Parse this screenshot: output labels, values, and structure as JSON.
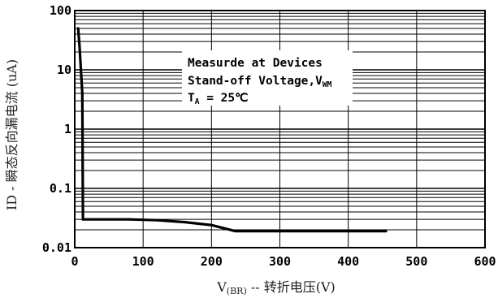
{
  "chart_data": {
    "type": "line",
    "scale": {
      "x": "linear",
      "y": "log"
    },
    "xlim": [
      0,
      600
    ],
    "ylim": [
      0.01,
      100
    ],
    "xticks": [
      0,
      100,
      200,
      300,
      400,
      500,
      600
    ],
    "xtick_labels": [
      "0",
      "100",
      "200",
      "300",
      "400",
      "500",
      "600"
    ],
    "yticks": [
      0.01,
      0.1,
      1,
      10,
      100
    ],
    "ytick_labels": [
      "0.01",
      "0.1",
      "1",
      "10",
      "100"
    ],
    "grid": true,
    "ylabel": "ID - 瞬态反向漏电流 (uA)",
    "xlabel": {
      "prefix": "V",
      "subscript": "(BR)",
      "suffix": " -- 转折电压(V)"
    },
    "annotation": {
      "line1": "Measurde at Devices",
      "line2_text": "Stand-off Voltage,V",
      "line2_sub": "WM",
      "line3_prefix": "T",
      "line3_sub": "A",
      "line3_suffix": " = 25℃"
    },
    "series": [
      {
        "x": [
          5,
          7,
          9,
          11,
          12,
          14,
          20,
          40,
          80,
          120,
          160,
          200,
          235,
          300,
          380,
          455
        ],
        "y": [
          50,
          25,
          10,
          4,
          0.03,
          0.03,
          0.03,
          0.03,
          0.03,
          0.029,
          0.027,
          0.024,
          0.019,
          0.019,
          0.019,
          0.019
        ]
      }
    ]
  }
}
